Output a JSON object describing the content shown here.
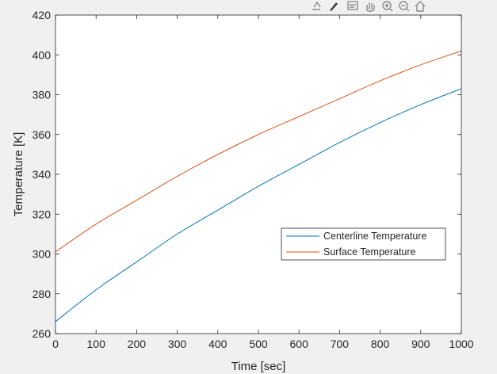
{
  "toolbar": {
    "icons": [
      "export-icon",
      "brush-icon",
      "data-tips-icon",
      "pan-icon",
      "zoom-in-icon",
      "zoom-out-icon",
      "home-icon"
    ]
  },
  "chart_data": {
    "type": "line",
    "title": "",
    "xlabel": "Time [sec]",
    "ylabel": "Temperature [K]",
    "xlim": [
      0,
      1000
    ],
    "ylim": [
      260,
      420
    ],
    "xticks": [
      0,
      100,
      200,
      300,
      400,
      500,
      600,
      700,
      800,
      900,
      1000
    ],
    "yticks": [
      260,
      280,
      300,
      320,
      340,
      360,
      380,
      400,
      420
    ],
    "grid": false,
    "legend_position": "center-right",
    "series": [
      {
        "name": "Centerline Temperature",
        "color": "#0072bd",
        "x": [
          0,
          100,
          200,
          300,
          400,
          500,
          600,
          700,
          800,
          900,
          1000
        ],
        "y": [
          266,
          282,
          296,
          310,
          322,
          334,
          345,
          356,
          366,
          375,
          383
        ]
      },
      {
        "name": "Surface Temperature",
        "color": "#d95319",
        "x": [
          0,
          100,
          200,
          300,
          400,
          500,
          600,
          700,
          800,
          900,
          1000
        ],
        "y": [
          301,
          315,
          327,
          339,
          350,
          360,
          369,
          378,
          387,
          395,
          402
        ]
      }
    ]
  }
}
